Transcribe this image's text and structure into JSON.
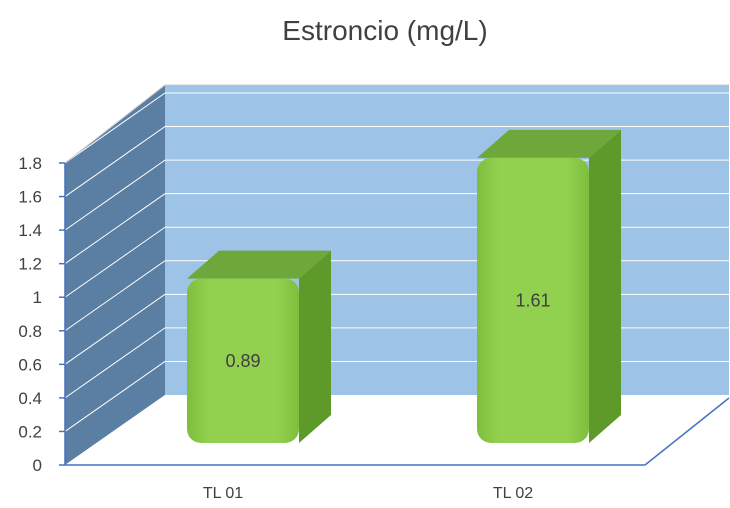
{
  "chart_data": {
    "type": "bar",
    "title": "Estroncio (mg/L)",
    "categories": [
      "TL 01",
      "TL 02"
    ],
    "values": [
      0.89,
      1.61
    ],
    "data_labels": [
      "0.89",
      "1.61"
    ],
    "y_ticks": [
      "0",
      "0.2",
      "0.4",
      "0.6",
      "0.8",
      "1",
      "1.2",
      "1.4",
      "1.6",
      "1.8"
    ],
    "ylim": [
      0,
      1.8
    ],
    "grid": true,
    "legend": "none",
    "style": "3d-bar",
    "colors": {
      "back_wall": "#9dc3e6",
      "side_wall": "#5b7fa3",
      "bar_front": "#92d050",
      "bar_side": "#5e9a2a",
      "bar_top": "#6fa83a",
      "axis": "#4472c4",
      "grid": "#ffffff"
    }
  }
}
